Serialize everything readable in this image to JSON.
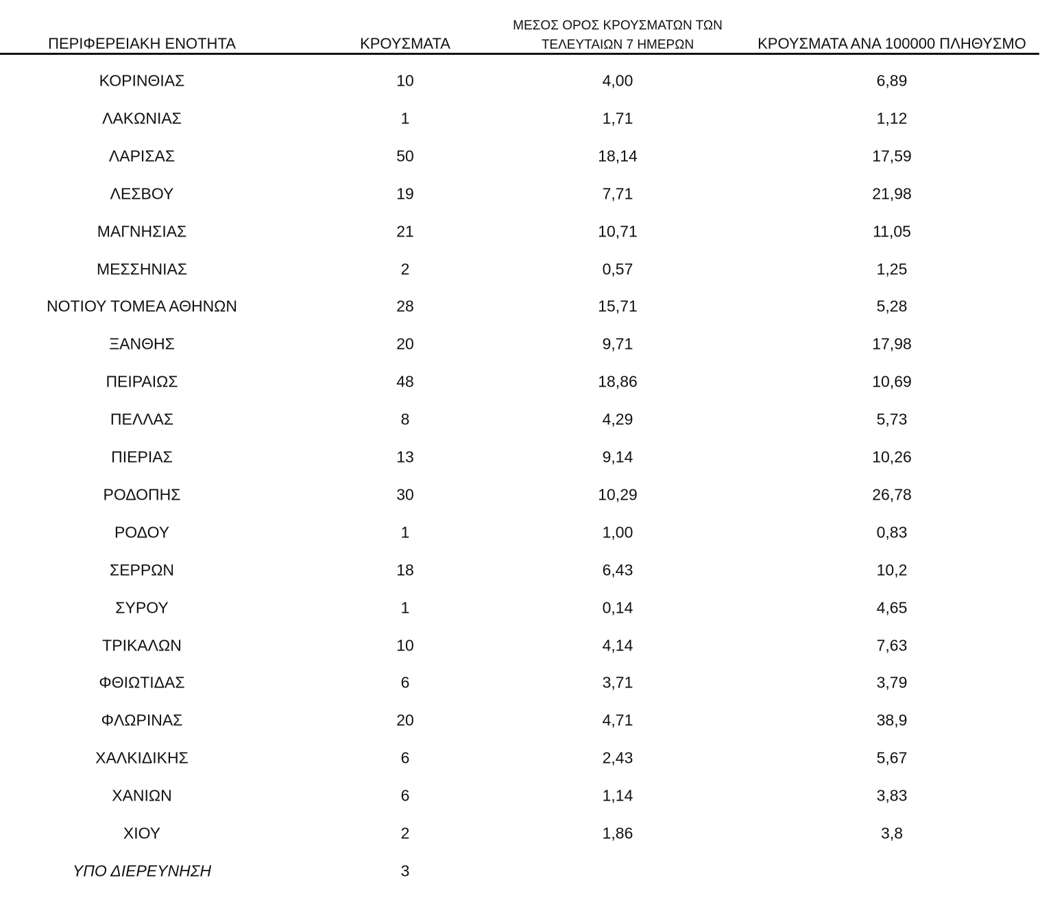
{
  "table": {
    "columns": [
      "ΠΕΡΙΦΕΡΕΙΑΚΗ ΕΝΟΤΗΤΑ",
      "ΚΡΟΥΣΜΑΤΑ",
      [
        "ΜΕΣΟΣ ΟΡΟΣ ΚΡΟΥΣΜΑΤΩΝ ΤΩΝ",
        "ΤΕΛΕΥΤΑΙΩΝ 7 ΗΜΕΡΩΝ"
      ],
      "ΚΡΟΥΣΜΑΤΑ ΑΝΑ 100000 ΠΛΗΘΥΣΜΟ"
    ],
    "rows": [
      [
        "ΚΟΡΙΝΘΙΑΣ",
        "10",
        "4,00",
        "6,89"
      ],
      [
        "ΛΑΚΩΝΙΑΣ",
        "1",
        "1,71",
        "1,12"
      ],
      [
        "ΛΑΡΙΣΑΣ",
        "50",
        "18,14",
        "17,59"
      ],
      [
        "ΛΕΣΒΟΥ",
        "19",
        "7,71",
        "21,98"
      ],
      [
        "ΜΑΓΝΗΣΙΑΣ",
        "21",
        "10,71",
        "11,05"
      ],
      [
        "ΜΕΣΣΗΝΙΑΣ",
        "2",
        "0,57",
        "1,25"
      ],
      [
        "ΝΟΤΙΟΥ ΤΟΜΕΑ ΑΘΗΝΩΝ",
        "28",
        "15,71",
        "5,28"
      ],
      [
        "ΞΑΝΘΗΣ",
        "20",
        "9,71",
        "17,98"
      ],
      [
        "ΠΕΙΡΑΙΩΣ",
        "48",
        "18,86",
        "10,69"
      ],
      [
        "ΠΕΛΛΑΣ",
        "8",
        "4,29",
        "5,73"
      ],
      [
        "ΠΙΕΡΙΑΣ",
        "13",
        "9,14",
        "10,26"
      ],
      [
        "ΡΟΔΟΠΗΣ",
        "30",
        "10,29",
        "26,78"
      ],
      [
        "ΡΟΔΟΥ",
        "1",
        "1,00",
        "0,83"
      ],
      [
        "ΣΕΡΡΩΝ",
        "18",
        "6,43",
        "10,2"
      ],
      [
        "ΣΥΡΟΥ",
        "1",
        "0,14",
        "4,65"
      ],
      [
        "ΤΡΙΚΑΛΩΝ",
        "10",
        "4,14",
        "7,63"
      ],
      [
        "ΦΘΙΩΤΙΔΑΣ",
        "6",
        "3,71",
        "3,79"
      ],
      [
        "ΦΛΩΡΙΝΑΣ",
        "20",
        "4,71",
        "38,9"
      ],
      [
        "ΧΑΛΚΙΔΙΚΗΣ",
        "6",
        "2,43",
        "5,67"
      ],
      [
        "ΧΑΝΙΩΝ",
        "6",
        "1,14",
        "3,83"
      ],
      [
        "ΧΙΟΥ",
        "2",
        "1,86",
        "3,8"
      ],
      [
        "ΥΠΟ ΔΙΕΡΕΥΝΗΣΗ",
        "3"
      ]
    ]
  }
}
